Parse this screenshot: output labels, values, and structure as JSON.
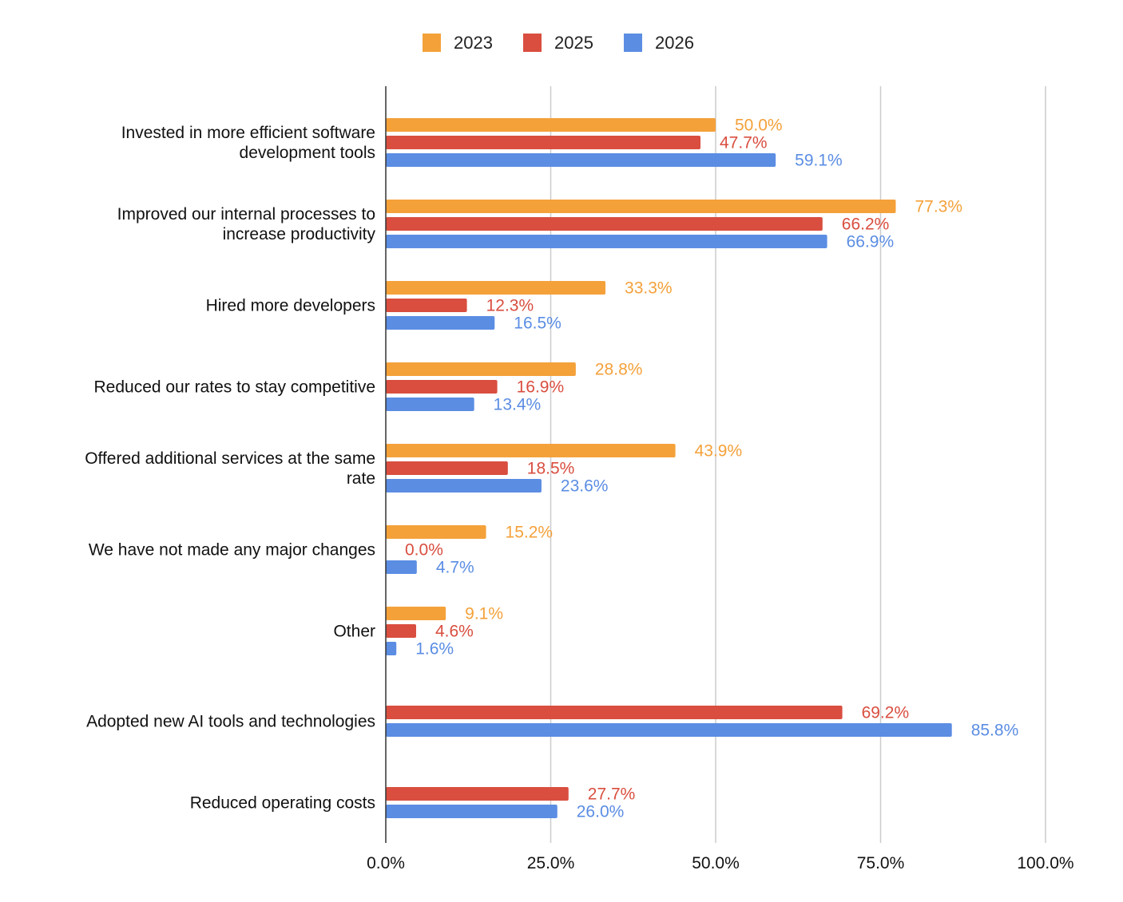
{
  "chart_data": {
    "type": "bar",
    "orientation": "horizontal",
    "title": "",
    "xlabel": "",
    "ylabel": "",
    "xlim": [
      0,
      100
    ],
    "x_ticks": [
      {
        "value": 0,
        "label": "0.0%"
      },
      {
        "value": 25,
        "label": "25.0%"
      },
      {
        "value": 50,
        "label": "50.0%"
      },
      {
        "value": 75,
        "label": "75.0%"
      },
      {
        "value": 100,
        "label": "100.0%"
      }
    ],
    "grid": true,
    "legend_position": "top",
    "categories": [
      [
        "Invested in more efficient software",
        "development tools"
      ],
      [
        "Improved our internal processes to",
        "increase productivity"
      ],
      [
        "Hired more developers"
      ],
      [
        "Reduced our rates to stay competitive"
      ],
      [
        "Offered additional services at the same",
        "rate"
      ],
      [
        "We have not made any major changes"
      ],
      [
        "Other"
      ],
      [
        "Adopted new AI tools and technologies"
      ],
      [
        "Reduced operating costs"
      ]
    ],
    "series": [
      {
        "name": "2023",
        "color": "#F4A13A",
        "values": [
          50.0,
          77.3,
          33.3,
          28.8,
          43.9,
          15.2,
          9.1,
          null,
          null
        ],
        "labels": [
          "50.0%",
          "77.3%",
          "33.3%",
          "28.8%",
          "43.9%",
          "15.2%",
          "9.1%",
          null,
          null
        ]
      },
      {
        "name": "2025",
        "color": "#D94E3F",
        "values": [
          47.7,
          66.2,
          12.3,
          16.9,
          18.5,
          0.0,
          4.6,
          69.2,
          27.7
        ],
        "labels": [
          "47.7%",
          "66.2%",
          "12.3%",
          "16.9%",
          "18.5%",
          "0.0%",
          "4.6%",
          "69.2%",
          "27.7%"
        ]
      },
      {
        "name": "2026",
        "color": "#5B8DE3",
        "values": [
          59.1,
          66.9,
          16.5,
          13.4,
          23.6,
          4.7,
          1.6,
          85.8,
          26.0
        ],
        "labels": [
          "59.1%",
          "66.9%",
          "16.5%",
          "13.4%",
          "23.6%",
          "4.7%",
          "1.6%",
          "85.8%",
          "26.0%"
        ]
      }
    ]
  }
}
